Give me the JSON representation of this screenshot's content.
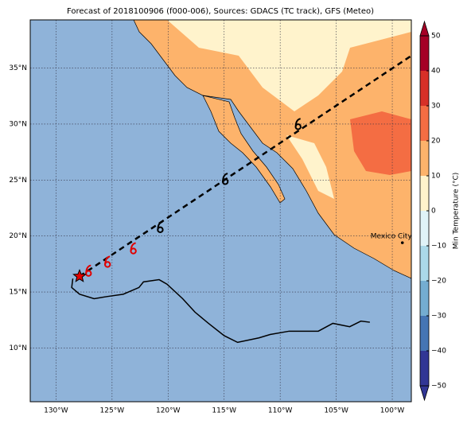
{
  "chart_data": {
    "type": "map",
    "title": "Forecast of 2018100906 (f000-006), Sources: GDACS (TC track), GFS (Meteo)",
    "xlim": [
      -132.3,
      -98.3
    ],
    "ylim": [
      5.2,
      39.3
    ],
    "xticks": [
      {
        "value": -130,
        "label": "130°W"
      },
      {
        "value": -125,
        "label": "125°W"
      },
      {
        "value": -120,
        "label": "120°W"
      },
      {
        "value": -115,
        "label": "115°W"
      },
      {
        "value": -110,
        "label": "110°W"
      },
      {
        "value": -105,
        "label": "105°W"
      },
      {
        "value": -100,
        "label": "100°W"
      }
    ],
    "yticks": [
      {
        "value": 10,
        "label": "10°N"
      },
      {
        "value": 15,
        "label": "15°N"
      },
      {
        "value": 20,
        "label": "20°N"
      },
      {
        "value": 25,
        "label": "25°N"
      },
      {
        "value": 30,
        "label": "30°N"
      },
      {
        "value": 35,
        "label": "35°N"
      }
    ],
    "grid": true,
    "colorbar": {
      "label": "Min Temperature (°C)",
      "lim": [
        -50,
        50
      ],
      "ticks": [
        {
          "value": -50,
          "label": "−50"
        },
        {
          "value": -40,
          "label": "−40"
        },
        {
          "value": -30,
          "label": "−30"
        },
        {
          "value": -20,
          "label": "−20"
        },
        {
          "value": -10,
          "label": "−10"
        },
        0,
        10,
        20,
        30,
        40,
        50
      ],
      "colors": [
        "#313695",
        "#4575b4",
        "#74add1",
        "#abd9e9",
        "#e0f3f8",
        "#fff3cc",
        "#fdb36b",
        "#f46d43",
        "#d73027",
        "#a50026"
      ]
    },
    "forecast_track": {
      "lon": [
        -127.9,
        -98.3
      ],
      "lat": [
        16.4,
        36.1
      ]
    },
    "forecast_points": {
      "lon": [
        -127.1,
        -125.4,
        -123.1,
        -120.7,
        -114.9,
        -108.4
      ],
      "lat": [
        16.8,
        17.6,
        18.8,
        20.7,
        25.0,
        29.9
      ],
      "colors": [
        "#e00000",
        "#e00000",
        "#e00000",
        "#000000",
        "#000000",
        "#000000"
      ]
    },
    "current_position": {
      "lon": -127.9,
      "lat": 16.4
    },
    "past_track": {
      "lon": [
        -128.5,
        -128.6,
        -127.9,
        -126.6,
        -125.4,
        -124.0,
        -122.6,
        -122.2,
        -120.8,
        -120.1,
        -118.7,
        -117.6,
        -116.4,
        -115.0,
        -113.8,
        -111.9,
        -110.9,
        -109.2,
        -106.6,
        -105.3,
        -103.8,
        -102.8,
        -102.0
      ],
      "lat": [
        16.2,
        15.4,
        14.8,
        14.4,
        14.6,
        14.8,
        15.4,
        15.9,
        16.1,
        15.7,
        14.4,
        13.2,
        12.2,
        11.1,
        10.5,
        10.9,
        11.2,
        11.5,
        11.5,
        12.2,
        11.9,
        12.4,
        12.3
      ]
    },
    "annotations": [
      {
        "text": "Mexico City",
        "lon": -99.1,
        "lat": 19.4
      }
    ]
  }
}
